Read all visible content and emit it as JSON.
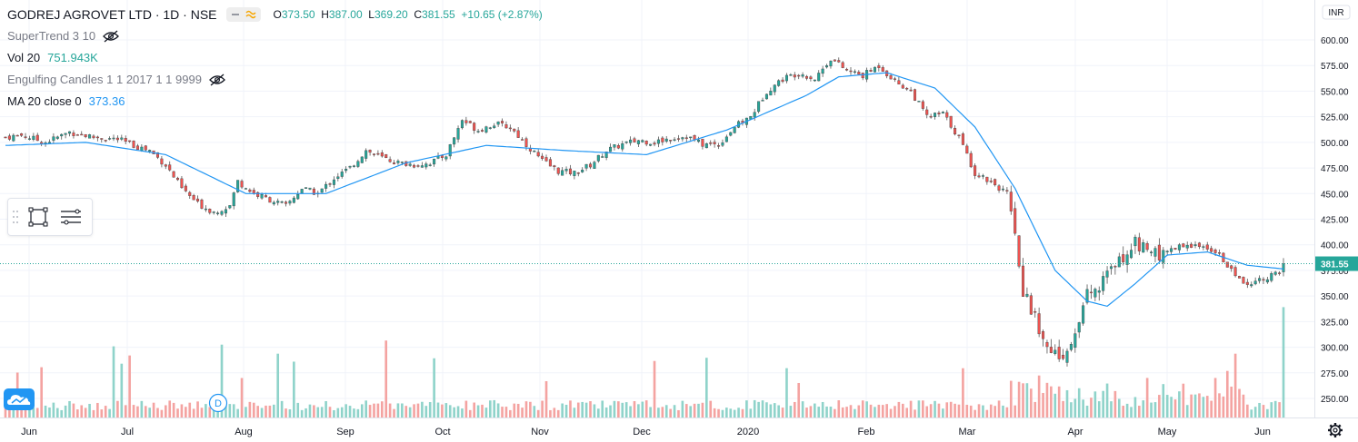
{
  "header": {
    "symbol_title": "GODREJ AGROVET LTD · 1D · NSE",
    "ohlc": {
      "open_label": "O",
      "open": "373.50",
      "high_label": "H",
      "high": "387.00",
      "low_label": "L",
      "low": "369.20",
      "close_label": "C",
      "close": "381.55",
      "change": "+10.65 (+2.87%)"
    }
  },
  "indicators": [
    {
      "label": "SuperTrend 3 10",
      "value": ""
    },
    {
      "label": "Vol 20",
      "value": "751.943K"
    },
    {
      "label": "Engulfing Candles 1 1 2017 1 1 9999",
      "value": ""
    },
    {
      "label": "MA 20 close 0",
      "value": "373.36"
    }
  ],
  "price_axis": {
    "currency": "INR",
    "last_price": "381.55",
    "ticks": [
      "600.00",
      "575.00",
      "550.00",
      "525.00",
      "500.00",
      "475.00",
      "450.00",
      "425.00",
      "400.00",
      "375.00",
      "350.00",
      "325.00",
      "300.00",
      "275.00",
      "250.00"
    ]
  },
  "time_axis": {
    "labels": [
      "Jun",
      "Jul",
      "Aug",
      "Sep",
      "Oct",
      "Nov",
      "Dec",
      "2020",
      "Feb",
      "Mar",
      "Apr",
      "May",
      "Jun"
    ]
  },
  "event_marker": {
    "label": "D"
  },
  "colors": {
    "up": "#26a69a",
    "down": "#ef5350",
    "ma": "#2196f3",
    "vol_up": "#8fd3ca",
    "vol_down": "#f4a3a1",
    "grid": "#f0f3fa",
    "last_price_bg": "#26a69a"
  },
  "chart_data": {
    "type": "candlestick",
    "x_range": [
      "Jun",
      "Jun"
    ],
    "ylim": [
      240,
      610
    ],
    "price_anchors": [
      [
        0,
        505
      ],
      [
        4,
        507
      ],
      [
        10,
        500
      ],
      [
        16,
        510
      ],
      [
        22,
        505
      ],
      [
        28,
        503
      ],
      [
        32,
        497
      ],
      [
        36,
        492
      ],
      [
        40,
        478
      ],
      [
        44,
        455
      ],
      [
        48,
        440
      ],
      [
        52,
        432
      ],
      [
        56,
        438
      ],
      [
        58,
        462
      ],
      [
        62,
        450
      ],
      [
        66,
        444
      ],
      [
        70,
        438
      ],
      [
        74,
        455
      ],
      [
        78,
        450
      ],
      [
        82,
        465
      ],
      [
        86,
        475
      ],
      [
        90,
        492
      ],
      [
        94,
        485
      ],
      [
        98,
        480
      ],
      [
        102,
        478
      ],
      [
        106,
        480
      ],
      [
        110,
        488
      ],
      [
        114,
        522
      ],
      [
        118,
        512
      ],
      [
        122,
        518
      ],
      [
        126,
        515
      ],
      [
        130,
        498
      ],
      [
        134,
        482
      ],
      [
        138,
        472
      ],
      [
        142,
        470
      ],
      [
        146,
        478
      ],
      [
        150,
        492
      ],
      [
        154,
        498
      ],
      [
        158,
        502
      ],
      [
        162,
        500
      ],
      [
        166,
        504
      ],
      [
        170,
        506
      ],
      [
        174,
        498
      ],
      [
        178,
        498
      ],
      [
        182,
        515
      ],
      [
        186,
        525
      ],
      [
        190,
        550
      ],
      [
        194,
        562
      ],
      [
        198,
        568
      ],
      [
        202,
        562
      ],
      [
        206,
        582
      ],
      [
        210,
        570
      ],
      [
        214,
        565
      ],
      [
        218,
        575
      ],
      [
        222,
        560
      ],
      [
        226,
        550
      ],
      [
        230,
        525
      ],
      [
        234,
        528
      ],
      [
        238,
        505
      ],
      [
        242,
        470
      ],
      [
        246,
        462
      ],
      [
        250,
        450
      ],
      [
        252,
        405
      ],
      [
        254,
        355
      ],
      [
        256,
        335
      ],
      [
        260,
        305
      ],
      [
        264,
        283
      ],
      [
        266,
        300
      ],
      [
        270,
        350
      ],
      [
        274,
        365
      ],
      [
        278,
        385
      ],
      [
        282,
        405
      ],
      [
        286,
        388
      ],
      [
        290,
        395
      ],
      [
        294,
        400
      ],
      [
        298,
        398
      ],
      [
        302,
        395
      ],
      [
        306,
        375
      ],
      [
        310,
        362
      ],
      [
        314,
        368
      ],
      [
        318,
        372
      ],
      [
        320,
        378
      ]
    ],
    "ma_anchors": [
      [
        0,
        497
      ],
      [
        20,
        500
      ],
      [
        40,
        488
      ],
      [
        60,
        450
      ],
      [
        80,
        450
      ],
      [
        100,
        480
      ],
      [
        120,
        497
      ],
      [
        140,
        492
      ],
      [
        160,
        488
      ],
      [
        180,
        512
      ],
      [
        200,
        546
      ],
      [
        208,
        564
      ],
      [
        220,
        568
      ],
      [
        232,
        553
      ],
      [
        242,
        515
      ],
      [
        252,
        455
      ],
      [
        262,
        375
      ],
      [
        270,
        345
      ],
      [
        275,
        340
      ],
      [
        282,
        362
      ],
      [
        290,
        390
      ],
      [
        300,
        393
      ],
      [
        310,
        380
      ],
      [
        320,
        376
      ]
    ],
    "volume_range": [
      0,
      2400000
    ],
    "volume_note": "relative heights estimated from bars; spikes near Aug, Oct, Jan, Feb, Mar, Apr, May, Jun",
    "n_candles": 320,
    "last_close": 381.55,
    "last_ma": 373.36
  }
}
